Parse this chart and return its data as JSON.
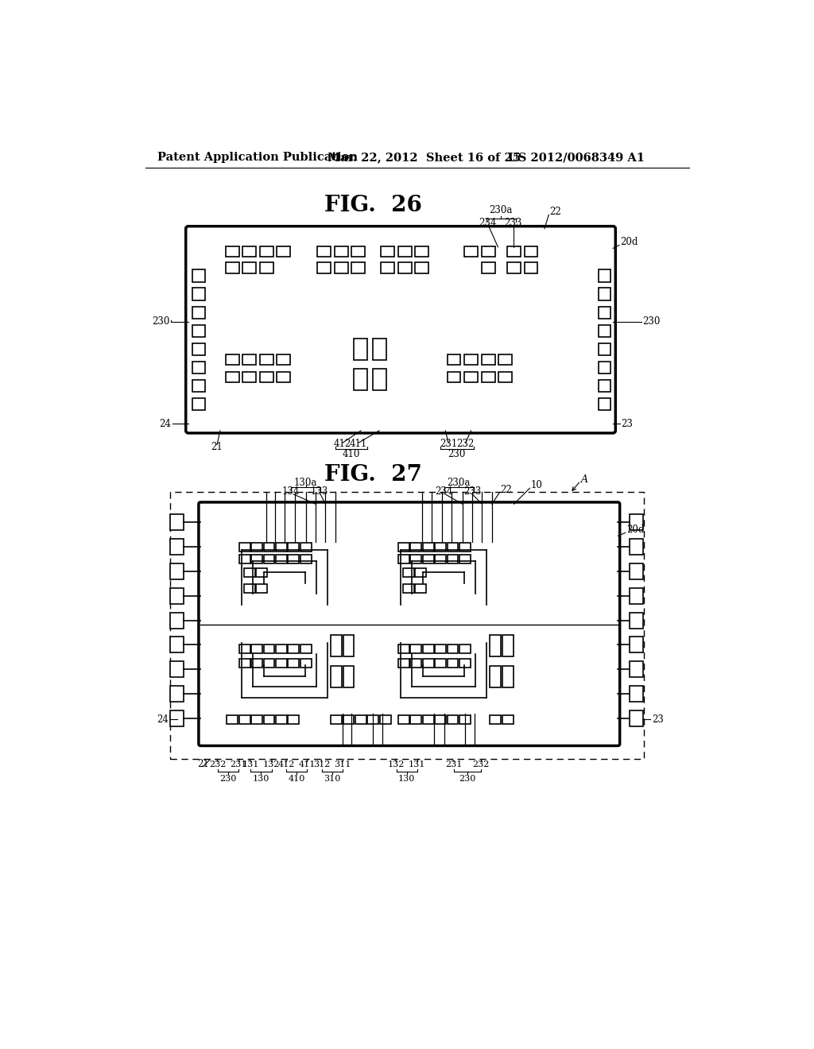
{
  "bg_color": "#ffffff",
  "header_text": "Patent Application Publication",
  "header_date": "Mar. 22, 2012  Sheet 16 of 25",
  "header_patent": "US 2012/0068349 A1",
  "fig26_title": "FIG.  26",
  "fig27_title": "FIG.  27"
}
